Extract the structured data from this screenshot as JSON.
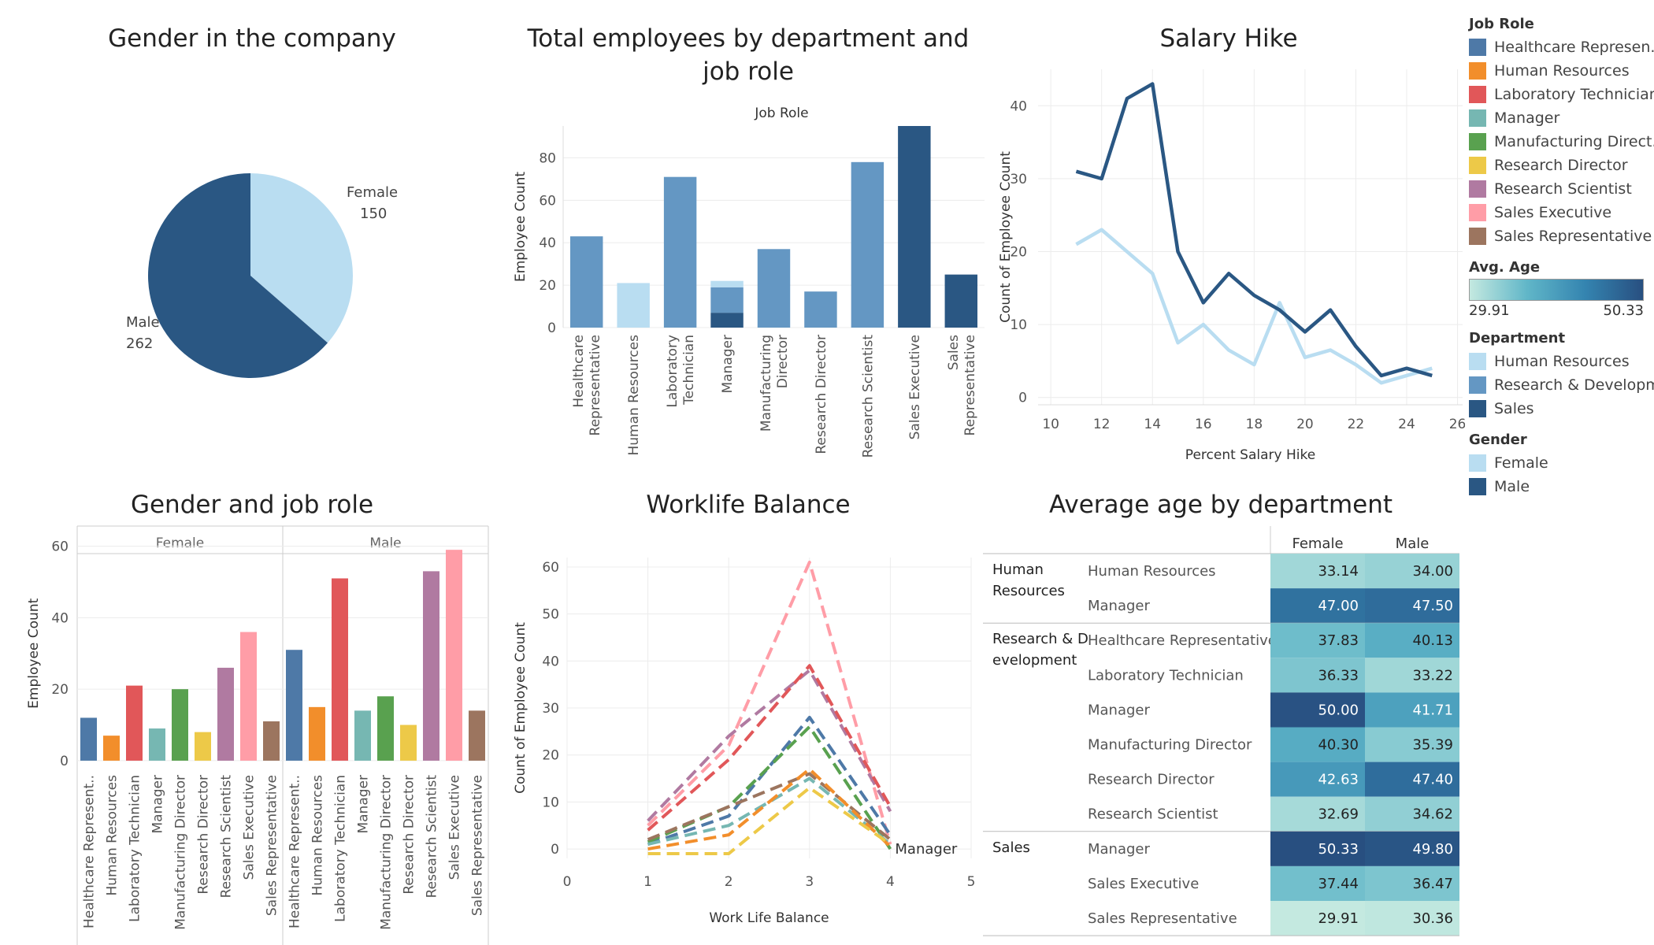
{
  "colors": {
    "dark": "#2a5783",
    "mid": "#6497c3",
    "light": "#b9ddf1",
    "grid": "#ececec"
  },
  "role_colors": {
    "Healthcare Representative": "#4e79a7",
    "Human Resources": "#f28e2b",
    "Laboratory Technician": "#e15759",
    "Manager": "#76b7b2",
    "Manufacturing Director": "#59a14f",
    "Research Director": "#edc948",
    "Research Scientist": "#b07aa1",
    "Sales Executive": "#ff9da7",
    "Sales Representative": "#9c755f"
  },
  "legend": {
    "job_role_title": "Job Role",
    "job_roles": [
      "Healthcare Represen..",
      "Human Resources",
      "Laboratory Technician",
      "Manager",
      "Manufacturing Direct..",
      "Research Director",
      "Research Scientist",
      "Sales Executive",
      "Sales Representative"
    ],
    "age_title": "Avg. Age",
    "age_min": "29.91",
    "age_max": "50.33",
    "dept_title": "Department",
    "departments": [
      "Human Resources",
      "Research & Developm..",
      "Sales"
    ],
    "gender_title": "Gender",
    "genders": [
      "Female",
      "Male"
    ]
  },
  "chart_data": [
    {
      "id": "gender_pie",
      "type": "pie",
      "title": "Gender in the company",
      "slices": [
        {
          "label": "Female",
          "value": 150,
          "value_label": "150",
          "color": "#b9ddf1"
        },
        {
          "label": "Male",
          "value": 262,
          "value_label": "262",
          "color": "#2a5783"
        }
      ]
    },
    {
      "id": "dept_role",
      "type": "bar",
      "title": "Total employees by department and job role",
      "header": "Job Role",
      "ylabel": "Employee Count",
      "ylim": [
        0,
        95
      ],
      "yticks": [
        0,
        20,
        40,
        60,
        80
      ],
      "categories": [
        "Healthcare Representative",
        "Human Resources",
        "Laboratory Technician",
        "Manager",
        "Manufacturing Director",
        "Research Director",
        "Research Scientist",
        "Sales Executive",
        "Sales Representative"
      ],
      "category_labels": [
        [
          "Healthcare",
          "Representative"
        ],
        [
          "Human Resources"
        ],
        [
          "Laboratory",
          "Technician"
        ],
        [
          "Manager"
        ],
        [
          "Manufacturing",
          "Director"
        ],
        [
          "Research Director"
        ],
        [
          "Research Scientist"
        ],
        [
          "Sales Executive"
        ],
        [
          "Sales",
          "Representative"
        ]
      ],
      "stacks": [
        [
          {
            "dept": "Research & Development",
            "value": 43
          }
        ],
        [
          {
            "dept": "Human Resources",
            "value": 21
          }
        ],
        [
          {
            "dept": "Research & Development",
            "value": 71
          }
        ],
        [
          {
            "dept": "Sales",
            "value": 7
          },
          {
            "dept": "Research & Development",
            "value": 12
          },
          {
            "dept": "Human Resources",
            "value": 3
          }
        ],
        [
          {
            "dept": "Research & Development",
            "value": 37
          }
        ],
        [
          {
            "dept": "Research & Development",
            "value": 17
          }
        ],
        [
          {
            "dept": "Research & Development",
            "value": 78
          }
        ],
        [
          {
            "dept": "Sales",
            "value": 95
          }
        ],
        [
          {
            "dept": "Sales",
            "value": 25
          }
        ]
      ]
    },
    {
      "id": "salary_hike",
      "type": "line",
      "title": "Salary Hike",
      "xlabel": "Percent Salary Hike",
      "ylabel": "Count of Employee Count",
      "xlim": [
        9.5,
        26.2
      ],
      "ylim": [
        -1,
        45
      ],
      "xticks": [
        10,
        12,
        14,
        16,
        18,
        20,
        22,
        24,
        26
      ],
      "yticks": [
        0,
        10,
        20,
        30,
        40
      ],
      "x": [
        11,
        12,
        13,
        14,
        15,
        16,
        17,
        18,
        19,
        20,
        21,
        22,
        23,
        24,
        25
      ],
      "series": [
        {
          "name": "Male",
          "color": "#2a5783",
          "values": [
            31,
            30,
            41,
            43,
            20,
            13,
            17,
            14,
            12,
            9,
            12,
            7,
            3,
            4,
            3
          ]
        },
        {
          "name": "Female",
          "color": "#b9ddf1",
          "values": [
            21,
            23,
            20,
            17,
            7.5,
            10,
            6.5,
            4.5,
            13,
            5.5,
            6.5,
            4.5,
            2,
            3,
            4
          ]
        }
      ]
    },
    {
      "id": "gender_role",
      "type": "bar",
      "title": "Gender and job role",
      "ylabel": "Employee Count",
      "ylim": [
        -2,
        63
      ],
      "yticks": [
        0,
        20,
        40,
        60
      ],
      "panels": [
        "Female",
        "Male"
      ],
      "categories": [
        "Healthcare Represent..",
        "Human Resources",
        "Laboratory Technician",
        "Manager",
        "Manufacturing Director",
        "Research Director",
        "Research Scientist",
        "Sales Executive",
        "Sales Representative"
      ],
      "role_keys": [
        "Healthcare Representative",
        "Human Resources",
        "Laboratory Technician",
        "Manager",
        "Manufacturing Director",
        "Research Director",
        "Research Scientist",
        "Sales Executive",
        "Sales Representative"
      ],
      "series": [
        {
          "name": "Female",
          "values": [
            12,
            7,
            21,
            9,
            20,
            8,
            26,
            36,
            11
          ]
        },
        {
          "name": "Male",
          "values": [
            31,
            15,
            51,
            14,
            18,
            10,
            53,
            59,
            14
          ]
        }
      ]
    },
    {
      "id": "worklife",
      "type": "line",
      "title": "Worklife Balance",
      "xlabel": "Work Life Balance",
      "ylabel": "Count of Employee Count",
      "xlim": [
        0,
        5
      ],
      "ylim": [
        -2,
        62
      ],
      "xticks": [
        0,
        1,
        2,
        3,
        4,
        5
      ],
      "yticks": [
        0,
        10,
        20,
        30,
        40,
        50,
        60
      ],
      "x": [
        1,
        2,
        3,
        4
      ],
      "end_label": "Manager",
      "series": [
        {
          "name": "Sales Executive",
          "values": [
            5,
            22,
            61,
            1
          ]
        },
        {
          "name": "Research Scientist",
          "values": [
            6,
            24,
            38,
            8
          ]
        },
        {
          "name": "Laboratory Technician",
          "values": [
            4,
            19,
            39,
            9
          ]
        },
        {
          "name": "Healthcare Representative",
          "values": [
            1,
            7,
            28,
            3
          ]
        },
        {
          "name": "Manufacturing Director",
          "values": [
            1.5,
            9,
            26,
            0
          ]
        },
        {
          "name": "Sales Representative",
          "values": [
            2,
            9,
            16,
            2
          ]
        },
        {
          "name": "Manager",
          "values": [
            1,
            5,
            15,
            1
          ]
        },
        {
          "name": "Human Resources",
          "values": [
            0,
            3,
            17,
            0.5
          ]
        },
        {
          "name": "Research Director",
          "values": [
            -1,
            -1,
            13,
            1
          ]
        }
      ]
    },
    {
      "id": "avg_age",
      "type": "heatmap",
      "title": "Average age by department",
      "columns": [
        "Female",
        "Male"
      ],
      "color_range": [
        29.91,
        50.33
      ],
      "groups": [
        {
          "department": "Human Resources",
          "dept_lines": [
            "Human",
            "Resources"
          ],
          "rows": [
            {
              "role": "Human Resources",
              "values": [
                33.14,
                34.0
              ]
            },
            {
              "role": "Manager",
              "values": [
                47.0,
                47.5
              ]
            }
          ]
        },
        {
          "department": "Research & Development",
          "dept_lines": [
            "Research & D",
            "evelopment"
          ],
          "rows": [
            {
              "role": "Healthcare Representative",
              "values": [
                37.83,
                40.13
              ]
            },
            {
              "role": "Laboratory Technician",
              "values": [
                36.33,
                33.22
              ]
            },
            {
              "role": "Manager",
              "values": [
                50.0,
                41.71
              ]
            },
            {
              "role": "Manufacturing Director",
              "values": [
                40.3,
                35.39
              ]
            },
            {
              "role": "Research Director",
              "values": [
                42.63,
                47.4
              ]
            },
            {
              "role": "Research Scientist",
              "values": [
                32.69,
                34.62
              ]
            }
          ]
        },
        {
          "department": "Sales",
          "dept_lines": [
            "Sales"
          ],
          "rows": [
            {
              "role": "Manager",
              "values": [
                50.33,
                49.8
              ]
            },
            {
              "role": "Sales Executive",
              "values": [
                37.44,
                36.47
              ]
            },
            {
              "role": "Sales Representative",
              "values": [
                29.91,
                30.36
              ]
            }
          ]
        }
      ]
    }
  ]
}
